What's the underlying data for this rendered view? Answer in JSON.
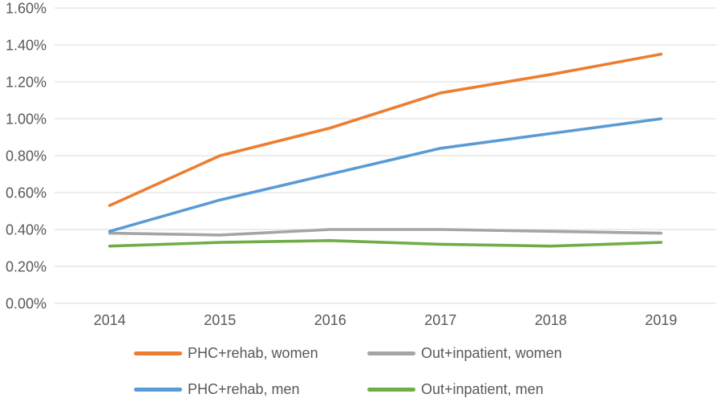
{
  "chart_data": {
    "type": "line",
    "categories": [
      "2014",
      "2015",
      "2016",
      "2017",
      "2018",
      "2019"
    ],
    "series": [
      {
        "name": "PHC+rehab, women",
        "color": "#ED7D31",
        "values": [
          0.53,
          0.8,
          0.95,
          1.14,
          1.24,
          1.35
        ]
      },
      {
        "name": "Out+inpatient, women",
        "color": "#A5A5A5",
        "values": [
          0.38,
          0.37,
          0.4,
          0.4,
          0.39,
          0.38
        ]
      },
      {
        "name": "PHC+rehab, men",
        "color": "#5B9BD5",
        "values": [
          0.39,
          0.56,
          0.7,
          0.84,
          0.92,
          1.0
        ]
      },
      {
        "name": "Out+inpatient, men",
        "color": "#70AD47",
        "values": [
          0.31,
          0.33,
          0.34,
          0.32,
          0.31,
          0.33
        ]
      }
    ],
    "y_ticks": [
      {
        "value": 0.0,
        "label": "0.00%"
      },
      {
        "value": 0.2,
        "label": "0.20%"
      },
      {
        "value": 0.4,
        "label": "0.40%"
      },
      {
        "value": 0.6,
        "label": "0.60%"
      },
      {
        "value": 0.8,
        "label": "0.80%"
      },
      {
        "value": 1.0,
        "label": "1.00%"
      },
      {
        "value": 1.2,
        "label": "1.20%"
      },
      {
        "value": 1.4,
        "label": "1.40%"
      },
      {
        "value": 1.6,
        "label": "1.60%"
      }
    ],
    "ylim": [
      0,
      1.6
    ],
    "grid": "horizontal",
    "legend_position": "bottom-two-columns",
    "colors": {
      "gridline": "#D9D9D9",
      "axis_text": "#595959",
      "background": "#FFFFFF"
    }
  },
  "legend": {
    "row1_col1": "PHC+rehab, women",
    "row1_col2": "Out+inpatient, women",
    "row2_col1": "PHC+rehab, men",
    "row2_col2": "Out+inpatient, men"
  }
}
